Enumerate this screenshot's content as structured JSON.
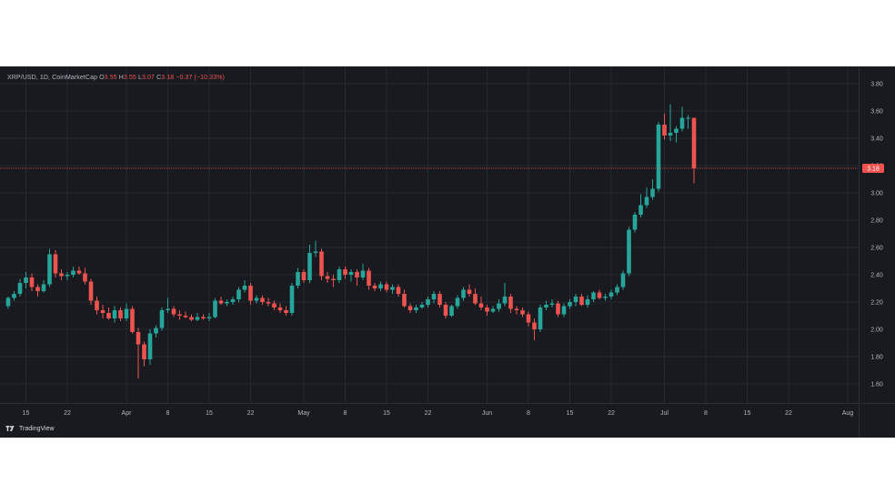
{
  "legend": {
    "symbol": "XRP/USD, 1D, CoinMarketCap",
    "o_label": "O",
    "o_value": "3.55",
    "h_label": "H",
    "h_value": "3.55",
    "l_label": "L",
    "l_value": "3.07",
    "c_label": "C",
    "c_value": "3.18",
    "change": "−0.37 (−10.33%)"
  },
  "footer": {
    "brand": "TradingView"
  },
  "colors": {
    "up": "#26a69a",
    "down": "#ef5350",
    "background": "#181a20",
    "grid": "#252831",
    "axis_text": "#b2b5be",
    "price_line": "#ef5350"
  },
  "chart_data": {
    "type": "candlestick",
    "title": "XRP/USD, 1D, CoinMarketCap",
    "interval": "1D",
    "y_ticks": [
      "1.60",
      "1.80",
      "2.00",
      "2.20",
      "2.40",
      "2.60",
      "2.80",
      "3.00",
      "3.20",
      "3.40",
      "3.60",
      "3.80"
    ],
    "x_ticks": [
      "15",
      "22",
      "Apr",
      "8",
      "15",
      "22",
      "May",
      "8",
      "15",
      "22",
      "Jun",
      "8",
      "15",
      "22",
      "Jul",
      "8",
      "15",
      "22",
      "Aug"
    ],
    "ylim": [
      1.48,
      3.88
    ],
    "last_price": "3.18",
    "grid": true,
    "start_date": "2025-03-12",
    "candles": [
      [
        2.17,
        2.24,
        2.15,
        2.23
      ],
      [
        2.23,
        2.28,
        2.21,
        2.26
      ],
      [
        2.26,
        2.37,
        2.24,
        2.34
      ],
      [
        2.34,
        2.42,
        2.3,
        2.38
      ],
      [
        2.38,
        2.41,
        2.28,
        2.31
      ],
      [
        2.31,
        2.33,
        2.24,
        2.28
      ],
      [
        2.28,
        2.36,
        2.27,
        2.33
      ],
      [
        2.33,
        2.59,
        2.31,
        2.55
      ],
      [
        2.55,
        2.58,
        2.38,
        2.41
      ],
      [
        2.41,
        2.44,
        2.36,
        2.39
      ],
      [
        2.39,
        2.42,
        2.36,
        2.4
      ],
      [
        2.4,
        2.46,
        2.38,
        2.43
      ],
      [
        2.43,
        2.46,
        2.4,
        2.41
      ],
      [
        2.41,
        2.45,
        2.33,
        2.35
      ],
      [
        2.35,
        2.37,
        2.18,
        2.21
      ],
      [
        2.21,
        2.24,
        2.11,
        2.14
      ],
      [
        2.14,
        2.18,
        2.08,
        2.12
      ],
      [
        2.12,
        2.16,
        2.07,
        2.08
      ],
      [
        2.08,
        2.17,
        2.05,
        2.14
      ],
      [
        2.14,
        2.16,
        2.06,
        2.08
      ],
      [
        2.08,
        2.19,
        2.06,
        2.15
      ],
      [
        2.15,
        2.17,
        1.97,
        1.98
      ],
      [
        1.98,
        2.01,
        1.64,
        1.89
      ],
      [
        1.89,
        1.91,
        1.73,
        1.78
      ],
      [
        1.78,
        2.0,
        1.74,
        1.97
      ],
      [
        1.97,
        2.03,
        1.94,
        2.01
      ],
      [
        2.01,
        2.16,
        1.99,
        2.14
      ],
      [
        2.14,
        2.23,
        2.12,
        2.15
      ],
      [
        2.15,
        2.17,
        2.09,
        2.11
      ],
      [
        2.11,
        2.14,
        2.07,
        2.1
      ],
      [
        2.1,
        2.13,
        2.08,
        2.09
      ],
      [
        2.09,
        2.11,
        2.06,
        2.07
      ],
      [
        2.07,
        2.12,
        2.06,
        2.09
      ],
      [
        2.09,
        2.11,
        2.07,
        2.08
      ],
      [
        2.08,
        2.12,
        2.06,
        2.09
      ],
      [
        2.09,
        2.23,
        2.08,
        2.21
      ],
      [
        2.21,
        2.24,
        2.18,
        2.19
      ],
      [
        2.19,
        2.22,
        2.17,
        2.2
      ],
      [
        2.2,
        2.24,
        2.18,
        2.22
      ],
      [
        2.22,
        2.31,
        2.2,
        2.29
      ],
      [
        2.29,
        2.36,
        2.27,
        2.32
      ],
      [
        2.32,
        2.34,
        2.18,
        2.21
      ],
      [
        2.21,
        2.25,
        2.19,
        2.23
      ],
      [
        2.23,
        2.25,
        2.18,
        2.2
      ],
      [
        2.2,
        2.23,
        2.17,
        2.19
      ],
      [
        2.19,
        2.21,
        2.14,
        2.16
      ],
      [
        2.16,
        2.19,
        2.12,
        2.14
      ],
      [
        2.14,
        2.17,
        2.1,
        2.12
      ],
      [
        2.12,
        2.34,
        2.1,
        2.32
      ],
      [
        2.32,
        2.45,
        2.3,
        2.42
      ],
      [
        2.42,
        2.44,
        2.34,
        2.36
      ],
      [
        2.36,
        2.62,
        2.34,
        2.56
      ],
      [
        2.56,
        2.65,
        2.53,
        2.57
      ],
      [
        2.57,
        2.59,
        2.36,
        2.39
      ],
      [
        2.39,
        2.42,
        2.34,
        2.37
      ],
      [
        2.37,
        2.4,
        2.31,
        2.36
      ],
      [
        2.36,
        2.46,
        2.34,
        2.44
      ],
      [
        2.44,
        2.46,
        2.37,
        2.4
      ],
      [
        2.4,
        2.44,
        2.35,
        2.42
      ],
      [
        2.42,
        2.44,
        2.32,
        2.38
      ],
      [
        2.38,
        2.48,
        2.36,
        2.43
      ],
      [
        2.43,
        2.45,
        2.29,
        2.32
      ],
      [
        2.32,
        2.34,
        2.28,
        2.3
      ],
      [
        2.3,
        2.35,
        2.28,
        2.33
      ],
      [
        2.33,
        2.35,
        2.27,
        2.29
      ],
      [
        2.29,
        2.33,
        2.26,
        2.31
      ],
      [
        2.31,
        2.33,
        2.24,
        2.26
      ],
      [
        2.26,
        2.29,
        2.16,
        2.17
      ],
      [
        2.17,
        2.19,
        2.12,
        2.14
      ],
      [
        2.14,
        2.18,
        2.12,
        2.16
      ],
      [
        2.16,
        2.2,
        2.15,
        2.18
      ],
      [
        2.18,
        2.24,
        2.16,
        2.22
      ],
      [
        2.22,
        2.28,
        2.19,
        2.26
      ],
      [
        2.26,
        2.28,
        2.16,
        2.18
      ],
      [
        2.18,
        2.2,
        2.08,
        2.1
      ],
      [
        2.1,
        2.18,
        2.09,
        2.17
      ],
      [
        2.17,
        2.25,
        2.15,
        2.23
      ],
      [
        2.23,
        2.31,
        2.21,
        2.29
      ],
      [
        2.29,
        2.33,
        2.24,
        2.26
      ],
      [
        2.26,
        2.3,
        2.18,
        2.19
      ],
      [
        2.19,
        2.24,
        2.14,
        2.16
      ],
      [
        2.16,
        2.18,
        2.1,
        2.13
      ],
      [
        2.13,
        2.17,
        2.12,
        2.15
      ],
      [
        2.15,
        2.22,
        2.13,
        2.19
      ],
      [
        2.19,
        2.34,
        2.17,
        2.24
      ],
      [
        2.24,
        2.26,
        2.12,
        2.15
      ],
      [
        2.15,
        2.17,
        2.11,
        2.14
      ],
      [
        2.14,
        2.16,
        2.09,
        2.11
      ],
      [
        2.11,
        2.13,
        2.02,
        2.05
      ],
      [
        2.05,
        2.08,
        1.92,
        2.0
      ],
      [
        2.0,
        2.18,
        1.98,
        2.16
      ],
      [
        2.16,
        2.21,
        2.14,
        2.18
      ],
      [
        2.18,
        2.22,
        2.16,
        2.19
      ],
      [
        2.19,
        2.21,
        2.09,
        2.11
      ],
      [
        2.11,
        2.19,
        2.09,
        2.17
      ],
      [
        2.17,
        2.22,
        2.15,
        2.2
      ],
      [
        2.2,
        2.26,
        2.17,
        2.24
      ],
      [
        2.24,
        2.26,
        2.17,
        2.18
      ],
      [
        2.18,
        2.25,
        2.16,
        2.22
      ],
      [
        2.22,
        2.28,
        2.2,
        2.27
      ],
      [
        2.27,
        2.29,
        2.22,
        2.23
      ],
      [
        2.23,
        2.26,
        2.21,
        2.24
      ],
      [
        2.24,
        2.29,
        2.22,
        2.27
      ],
      [
        2.27,
        2.33,
        2.25,
        2.31
      ],
      [
        2.31,
        2.43,
        2.29,
        2.41
      ],
      [
        2.41,
        2.75,
        2.39,
        2.73
      ],
      [
        2.73,
        2.86,
        2.71,
        2.84
      ],
      [
        2.84,
        2.99,
        2.82,
        2.91
      ],
      [
        2.91,
        3.04,
        2.89,
        2.97
      ],
      [
        2.97,
        3.1,
        2.95,
        3.03
      ],
      [
        3.03,
        3.52,
        3.01,
        3.5
      ],
      [
        3.5,
        3.58,
        3.39,
        3.42
      ],
      [
        3.42,
        3.65,
        3.38,
        3.44
      ],
      [
        3.44,
        3.49,
        3.37,
        3.47
      ],
      [
        3.47,
        3.63,
        3.45,
        3.55
      ],
      [
        3.55,
        3.57,
        3.47,
        3.55
      ],
      [
        3.55,
        3.55,
        3.07,
        3.18
      ]
    ]
  }
}
